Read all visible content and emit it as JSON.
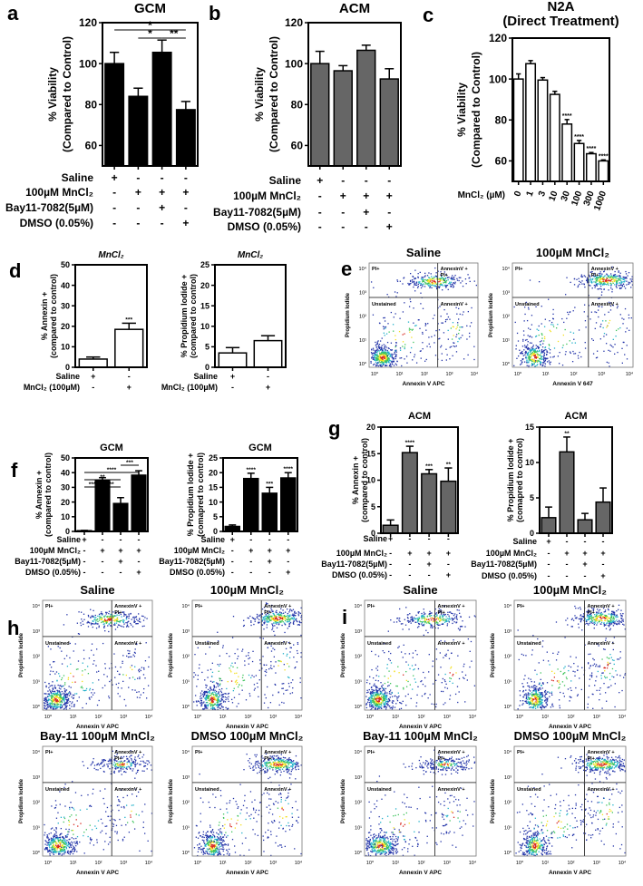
{
  "panel_letters": [
    "a",
    "b",
    "c",
    "d",
    "e",
    "f",
    "g",
    "h",
    "i"
  ],
  "chart_data": [
    {
      "panel": "a",
      "type": "bar",
      "title": "GCM",
      "ylabel": [
        "% Viability",
        "(Compared to Control)"
      ],
      "ylim": [
        50,
        120
      ],
      "yticks": [
        "60",
        "80",
        "100",
        "120"
      ],
      "categories": [
        "Saline",
        "100µM MnCl₂",
        "100µM MnCl₂ + Bay11-7082",
        "100µM MnCl₂ + DMSO"
      ],
      "values": [
        100,
        84,
        105.5,
        77.5
      ],
      "errors": [
        5.5,
        4,
        6,
        4
      ],
      "bar_color": "#000000",
      "stars": [
        "",
        "",
        "",
        ""
      ],
      "brackets": [
        {
          "from": 0,
          "to": 3,
          "label": "*",
          "level": 1
        },
        {
          "from": 1,
          "to": 2,
          "label": "*",
          "level": 0
        },
        {
          "from": 2,
          "to": 3,
          "label": "**",
          "level": 0
        }
      ],
      "conditions": [
        {
          "label": "Saline",
          "signs": [
            "+",
            "-",
            "-",
            "-"
          ]
        },
        {
          "label": "100µM MnCl₂",
          "signs": [
            "-",
            "+",
            "+",
            "+"
          ]
        },
        {
          "label": "Bay11-7082(5µM)",
          "signs": [
            "-",
            "-",
            "+",
            "-"
          ]
        },
        {
          "label": "DMSO (0.05%)",
          "signs": [
            "-",
            "-",
            "-",
            "+"
          ]
        }
      ]
    },
    {
      "panel": "b",
      "type": "bar",
      "title": "ACM",
      "ylabel": [
        "% Viability",
        "(Compared to Control)"
      ],
      "ylim": [
        50,
        120
      ],
      "yticks": [
        "60",
        "80",
        "100",
        "120"
      ],
      "categories": [
        "Saline",
        "100µM MnCl₂",
        "100µM MnCl₂ + Bay11-7082",
        "100µM MnCl₂ + DMSO"
      ],
      "values": [
        100,
        96.5,
        106.5,
        92.5
      ],
      "errors": [
        6,
        2.5,
        2.5,
        5
      ],
      "bar_color": "#666666",
      "stars": [
        "",
        "",
        "",
        ""
      ],
      "brackets": [],
      "conditions": [
        {
          "label": "Saline",
          "signs": [
            "+",
            "-",
            "-",
            "-"
          ]
        },
        {
          "label": "100µM MnCl₂",
          "signs": [
            "-",
            "+",
            "+",
            "+"
          ]
        },
        {
          "label": "Bay11-7082(5µM)",
          "signs": [
            "-",
            "-",
            "+",
            "-"
          ]
        },
        {
          "label": "DMSO (0.05%)",
          "signs": [
            "-",
            "-",
            "-",
            "+"
          ]
        }
      ]
    },
    {
      "panel": "c",
      "type": "bar",
      "title": "N2A",
      "subtitle": "(Direct Treatment)",
      "ylabel": [
        "% Viability",
        "(Compared to Control)"
      ],
      "ylim": [
        50,
        120
      ],
      "yticks": [
        "60",
        "80",
        "100",
        "120"
      ],
      "xlabel": "MnCl₂ (µM)",
      "categories": [
        "0",
        "1",
        "3",
        "10",
        "30",
        "100",
        "300",
        "1000"
      ],
      "values": [
        100,
        107.5,
        99.5,
        92.5,
        78,
        68.5,
        63.5,
        60
      ],
      "errors": [
        2.5,
        1.5,
        1.2,
        1.5,
        2.2,
        1.5,
        0.6,
        0.5
      ],
      "bar_color": "#ffffff",
      "stars": [
        "",
        "",
        "",
        "",
        "****",
        "****",
        "****",
        "****"
      ],
      "brackets": [],
      "conditions": []
    },
    {
      "panel": "d",
      "type": "bar",
      "title": "MnCl₂",
      "ylabel": [
        "% Annexin +",
        "(compared to control)"
      ],
      "ylim": [
        0,
        50
      ],
      "yticks": [
        "0",
        "10",
        "20",
        "30",
        "40",
        "50"
      ],
      "categories": [
        "Saline",
        "MnCl₂ (100µM)"
      ],
      "values": [
        4,
        18.5
      ],
      "errors": [
        1,
        3
      ],
      "bar_color": "#ffffff",
      "stars": [
        "",
        "***"
      ],
      "brackets": [],
      "conditions": [
        {
          "label": "Saline",
          "signs": [
            "+",
            "-"
          ]
        },
        {
          "label": "MnCl₂ (100µM)",
          "signs": [
            "-",
            "+"
          ]
        }
      ]
    },
    {
      "panel": "d",
      "type": "bar",
      "title": "MnCl₂",
      "ylabel": [
        "% Propidium Iodide +",
        "(compared to control)"
      ],
      "ylim": [
        0,
        25
      ],
      "yticks": [
        "0",
        "5",
        "10",
        "15",
        "20",
        "25"
      ],
      "categories": [
        "Saline",
        "MnCl₂ (100µM)"
      ],
      "values": [
        3.5,
        6.5
      ],
      "errors": [
        1.3,
        1.2
      ],
      "bar_color": "#ffffff",
      "stars": [
        "",
        ""
      ],
      "brackets": [],
      "conditions": [
        {
          "label": "Saline",
          "signs": [
            "+",
            "-"
          ]
        },
        {
          "label": "MnCl₂ (100µM)",
          "signs": [
            "-",
            "+"
          ]
        }
      ]
    },
    {
      "panel": "f",
      "type": "bar",
      "title": "GCM",
      "ylabel": [
        "% Annexin +",
        "(compared  to control)"
      ],
      "ylim": [
        0,
        50
      ],
      "yticks": [
        "0",
        "10",
        "20",
        "30",
        "40",
        "50"
      ],
      "categories": [
        "Saline",
        "100µM MnCl₂",
        "100µM MnCl₂ + Bay11-7082",
        "100µM MnCl₂ + DMSO"
      ],
      "values": [
        0.5,
        34.8,
        19,
        38.3
      ],
      "errors": [
        0.2,
        1.8,
        4,
        3
      ],
      "bar_color": "#000000",
      "stars": [
        "",
        "",
        "",
        ""
      ],
      "brackets": [
        {
          "from": 0,
          "to": 1,
          "label": "****",
          "level": 0
        },
        {
          "from": 1,
          "to": 2,
          "label": "**",
          "level": 0
        },
        {
          "from": 0,
          "to": 2,
          "label": "**",
          "level": 1
        },
        {
          "from": 0,
          "to": 3,
          "label": "****",
          "level": 2
        },
        {
          "from": 2,
          "to": 3,
          "label": "***",
          "level": 3
        }
      ],
      "conditions": [
        {
          "label": "Saline",
          "signs": [
            "+",
            "-",
            "-",
            "-"
          ]
        },
        {
          "label": "100µM MnCl₂",
          "signs": [
            "-",
            "+",
            "+",
            "+"
          ]
        },
        {
          "label": "Bay11-7082(5µM)",
          "signs": [
            "-",
            "-",
            "+",
            "-"
          ]
        },
        {
          "label": "DMSO (0.05%)",
          "signs": [
            "-",
            "-",
            "-",
            "+"
          ]
        }
      ]
    },
    {
      "panel": "f",
      "type": "bar",
      "title": "GCM",
      "ylabel": [
        "% Propidium Iodide +",
        "(comapred to control)"
      ],
      "ylim": [
        0,
        25
      ],
      "yticks": [
        "0",
        "5",
        "10",
        "15",
        "20",
        "25"
      ],
      "categories": [
        "Saline",
        "100µM MnCl₂",
        "100µM MnCl₂ + Bay11-7082",
        "100µM MnCl₂ + DMSO"
      ],
      "values": [
        1.7,
        18,
        13,
        18.2
      ],
      "errors": [
        0.5,
        1.8,
        2,
        1.8
      ],
      "bar_color": "#000000",
      "stars": [
        "",
        "****",
        "***",
        "****"
      ],
      "brackets": [],
      "conditions": [
        {
          "label": "Saline",
          "signs": [
            "+",
            "-",
            "-",
            "-"
          ]
        },
        {
          "label": "100µM MnCl₂",
          "signs": [
            "-",
            "+",
            "+",
            "+"
          ]
        },
        {
          "label": "Bay11-7082(5µM)",
          "signs": [
            "-",
            "-",
            "+",
            "-"
          ]
        },
        {
          "label": "DMSO (0.05%)",
          "signs": [
            "-",
            "-",
            "-",
            "+"
          ]
        }
      ]
    },
    {
      "panel": "g",
      "type": "bar",
      "title": "ACM",
      "ylabel": [
        "% Annexin +",
        "(compared  to control)"
      ],
      "ylim": [
        0,
        20
      ],
      "yticks": [
        "0",
        "5",
        "10",
        "15",
        "20"
      ],
      "categories": [
        "Saline",
        "100µM MnCl₂",
        "100µM MnCl₂ + Bay11-7082",
        "100µM MnCl₂ + DMSO"
      ],
      "values": [
        1.5,
        15.2,
        11.2,
        9.8
      ],
      "errors": [
        1,
        1.2,
        0.8,
        2.5
      ],
      "bar_color": "#666666",
      "stars": [
        "",
        "****",
        "***",
        "**"
      ],
      "brackets": [],
      "conditions": [
        {
          "label": "Saline",
          "signs": [
            "+",
            "-",
            "-",
            "-"
          ]
        },
        {
          "label": "100µM MnCl₂",
          "signs": [
            "-",
            "+",
            "+",
            "+"
          ]
        },
        {
          "label": "Bay11-7082(5µM)",
          "signs": [
            "-",
            "-",
            "+",
            "-"
          ]
        },
        {
          "label": "DMSO (0.05%)",
          "signs": [
            "-",
            "-",
            "-",
            "+"
          ]
        }
      ]
    },
    {
      "panel": "g",
      "type": "bar",
      "title": "ACM",
      "ylabel": [
        "% Propidium Iodide +",
        "(comapred to control)"
      ],
      "ylim": [
        0,
        15
      ],
      "yticks": [
        "0",
        "5",
        "10",
        "15"
      ],
      "categories": [
        "Saline",
        "100µM MnCl₂",
        "100µM MnCl₂ + Bay11-7082",
        "100µM MnCl₂ + DMSO"
      ],
      "values": [
        2.2,
        11.5,
        1.9,
        4.4
      ],
      "errors": [
        1.5,
        2.1,
        0.9,
        2
      ],
      "bar_color": "#666666",
      "stars": [
        "",
        "**",
        "",
        ""
      ],
      "brackets": [],
      "conditions": [
        {
          "label": "Saline",
          "signs": [
            "+",
            "-",
            "-",
            "-"
          ]
        },
        {
          "label": "100µM MnCl₂",
          "signs": [
            "-",
            "+",
            "+",
            "+"
          ]
        },
        {
          "label": "Bay11-7082(5µM)",
          "signs": [
            "-",
            "-",
            "+",
            "-"
          ]
        },
        {
          "label": "DMSO (0.05%)",
          "signs": [
            "-",
            "-",
            "-",
            "+"
          ]
        }
      ]
    }
  ],
  "flow_common": {
    "quadrants": {
      "top_left": "PI+",
      "top_right_1": "AnnexinV +",
      "top_right_2": "PI+",
      "bottom_left": "Unstained",
      "bottom_right": "AnnexinV +"
    },
    "ticks": [
      "10⁰",
      "10¹",
      "10²",
      "10³",
      "10⁴"
    ]
  },
  "flow_plots": [
    {
      "panel": "e",
      "title": "Saline",
      "ylabel": "Propidium Iodide",
      "xlabel": "Annexin V APC"
    },
    {
      "panel": "e",
      "title": "100µM MnCl₂",
      "ylabel": "Propidium Iodide",
      "xlabel": "Annexin V 647"
    },
    {
      "panel": "h",
      "title": "Saline",
      "ylabel": "Propidium Iodide",
      "xlabel": "Annexin V APC"
    },
    {
      "panel": "h",
      "title": "100µM MnCl₂",
      "ylabel": "Propidium Iodide",
      "xlabel": "Annexin V APC"
    },
    {
      "panel": "h",
      "title": "Bay-11 100µM MnCl₂",
      "ylabel": "Propidium Iodide",
      "xlabel": "Annexin V APC"
    },
    {
      "panel": "h",
      "title": "DMSO 100µM MnCl₂",
      "ylabel": "Propidium Iodide",
      "xlabel": "Annexin V APC"
    },
    {
      "panel": "i",
      "title": "Saline",
      "ylabel": "Propidium Iodide",
      "xlabel": "Annexin V APC"
    },
    {
      "panel": "i",
      "title": "100µM MnCl₂",
      "ylabel": "Propidium Iodide",
      "xlabel": "Annexin V APC"
    },
    {
      "panel": "i",
      "title": "Bay-11 100µM MnCl₂",
      "ylabel": "Propidium Iodide",
      "xlabel": "Annexin V APC"
    },
    {
      "panel": "i",
      "title": "DMSO 100µM MnCl₂",
      "ylabel": "Propidium Iodide",
      "xlabel": "Annexin V APC"
    }
  ]
}
